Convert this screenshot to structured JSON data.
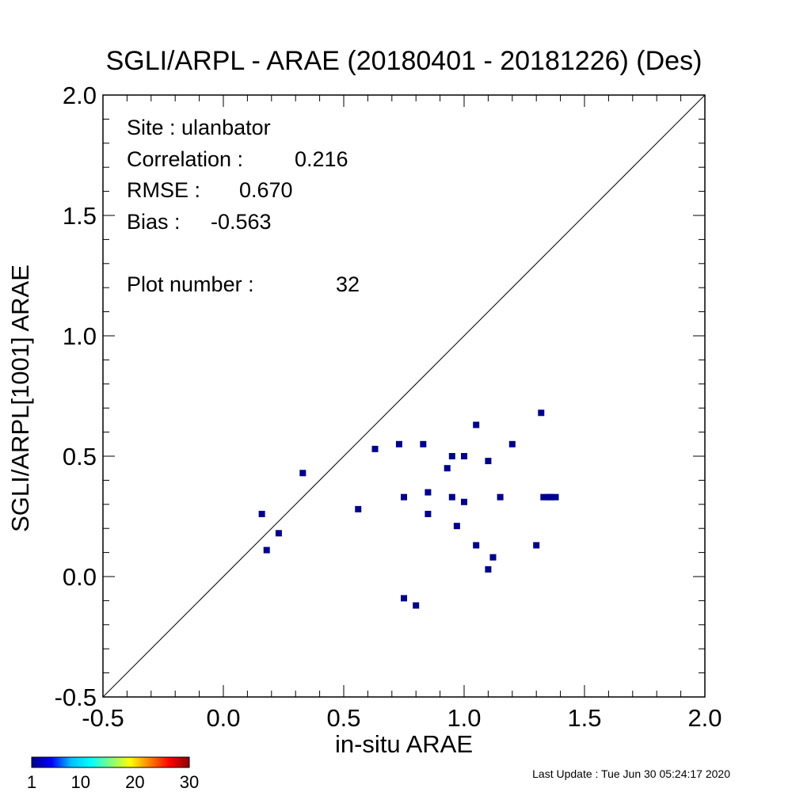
{
  "chart_data": {
    "type": "scatter",
    "title": "SGLI/ARPL - ARAE (20180401 - 20181226) (Des)",
    "xlabel": "in-situ ARAE",
    "ylabel": "SGLI/ARPL[1001]    ARAE",
    "xlim": [
      -0.5,
      2.0
    ],
    "ylim": [
      -0.5,
      2.0
    ],
    "xticks": [
      -0.5,
      0.0,
      0.5,
      1.0,
      1.5,
      2.0
    ],
    "yticks": [
      -0.5,
      0.0,
      0.5,
      1.0,
      1.5,
      2.0
    ],
    "xtick_labels": [
      "-0.5",
      "0.0",
      "0.5",
      "1.0",
      "1.5",
      "2.0"
    ],
    "ytick_labels": [
      "-0.5",
      "0.0",
      "0.5",
      "1.0",
      "1.5",
      "2.0"
    ],
    "reference_line": "1:1",
    "marker_color": "#00008B",
    "points": [
      {
        "x": 0.16,
        "y": 0.26
      },
      {
        "x": 0.18,
        "y": 0.11
      },
      {
        "x": 0.23,
        "y": 0.18
      },
      {
        "x": 0.33,
        "y": 0.43
      },
      {
        "x": 0.56,
        "y": 0.28
      },
      {
        "x": 0.63,
        "y": 0.53
      },
      {
        "x": 0.73,
        "y": 0.55
      },
      {
        "x": 0.75,
        "y": 0.33
      },
      {
        "x": 0.75,
        "y": -0.09
      },
      {
        "x": 0.8,
        "y": -0.12
      },
      {
        "x": 0.83,
        "y": 0.55
      },
      {
        "x": 0.85,
        "y": 0.35
      },
      {
        "x": 0.85,
        "y": 0.26
      },
      {
        "x": 0.93,
        "y": 0.45
      },
      {
        "x": 0.95,
        "y": 0.5
      },
      {
        "x": 0.95,
        "y": 0.33
      },
      {
        "x": 0.97,
        "y": 0.21
      },
      {
        "x": 1.0,
        "y": 0.5
      },
      {
        "x": 1.0,
        "y": 0.31
      },
      {
        "x": 1.05,
        "y": 0.63
      },
      {
        "x": 1.05,
        "y": 0.13
      },
      {
        "x": 1.1,
        "y": 0.48
      },
      {
        "x": 1.1,
        "y": 0.03
      },
      {
        "x": 1.12,
        "y": 0.08
      },
      {
        "x": 1.15,
        "y": 0.33
      },
      {
        "x": 1.2,
        "y": 0.55
      },
      {
        "x": 1.3,
        "y": 0.13
      },
      {
        "x": 1.32,
        "y": 0.68
      },
      {
        "x": 1.33,
        "y": 0.33
      },
      {
        "x": 1.35,
        "y": 0.33
      },
      {
        "x": 1.36,
        "y": 0.33
      },
      {
        "x": 1.38,
        "y": 0.33
      }
    ]
  },
  "stats": {
    "site": "Site : ulanbator",
    "correlation_label": "Correlation :",
    "correlation": "0.216",
    "rmse_label": "RMSE :",
    "rmse": "0.670",
    "bias_label": "Bias :",
    "bias": "-0.563",
    "plot_number_label": "Plot number :",
    "plot_number": "32"
  },
  "colorbar": {
    "labels": [
      "1",
      "10",
      "20",
      "30"
    ],
    "min": 1,
    "max": 30,
    "colors": [
      "#00008B",
      "#0000FF",
      "#00BFFF",
      "#00FFFF",
      "#7FFF7F",
      "#FFFF00",
      "#FF7F00",
      "#FF0000",
      "#8B0000"
    ]
  },
  "footer": {
    "last_update": "Last Update : Tue Jun 30 05:24:17 2020"
  }
}
